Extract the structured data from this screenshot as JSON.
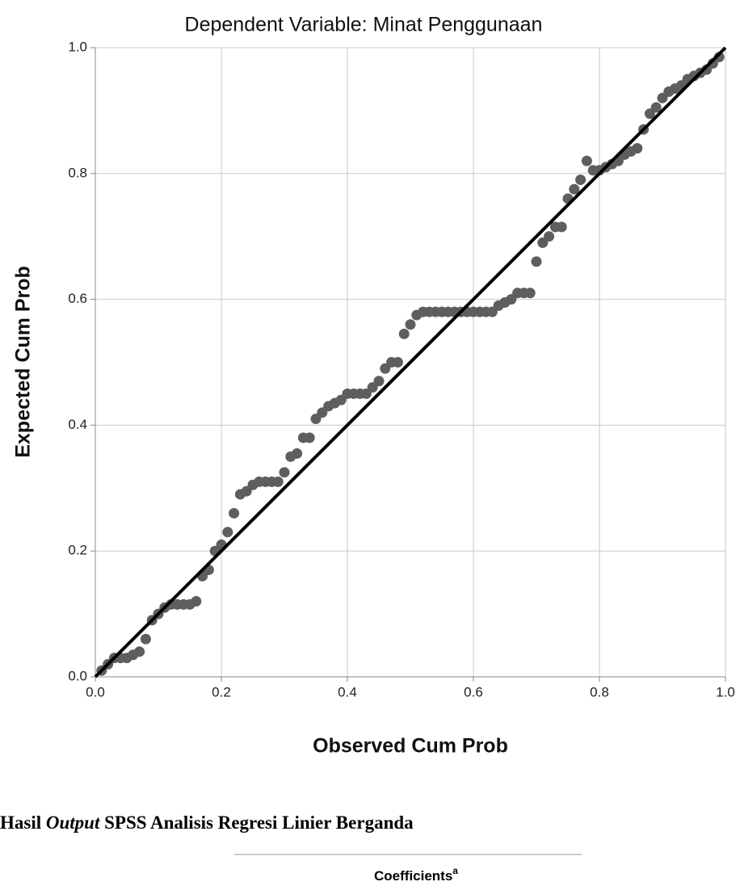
{
  "chart_data": {
    "type": "scatter",
    "title": "Dependent Variable: Minat Penggunaan",
    "x_label": "Observed Cum Prob",
    "y_label": "Expected Cum Prob",
    "x": [
      0.01,
      0.02,
      0.03,
      0.04,
      0.05,
      0.06,
      0.07,
      0.08,
      0.09,
      0.1,
      0.11,
      0.12,
      0.13,
      0.14,
      0.15,
      0.16,
      0.17,
      0.18,
      0.19,
      0.2,
      0.21,
      0.22,
      0.23,
      0.24,
      0.25,
      0.26,
      0.27,
      0.28,
      0.29,
      0.3,
      0.31,
      0.32,
      0.33,
      0.34,
      0.35,
      0.36,
      0.37,
      0.38,
      0.39,
      0.4,
      0.41,
      0.42,
      0.43,
      0.44,
      0.45,
      0.46,
      0.47,
      0.48,
      0.49,
      0.5,
      0.51,
      0.52,
      0.53,
      0.54,
      0.55,
      0.56,
      0.57,
      0.58,
      0.59,
      0.6,
      0.61,
      0.62,
      0.63,
      0.64,
      0.65,
      0.66,
      0.67,
      0.68,
      0.69,
      0.7,
      0.71,
      0.72,
      0.73,
      0.74,
      0.75,
      0.76,
      0.77,
      0.78,
      0.79,
      0.8,
      0.81,
      0.82,
      0.83,
      0.84,
      0.85,
      0.86,
      0.87,
      0.88,
      0.89,
      0.9,
      0.91,
      0.92,
      0.93,
      0.94,
      0.95,
      0.96,
      0.97,
      0.98,
      0.99
    ],
    "values": [
      0.01,
      0.02,
      0.03,
      0.03,
      0.03,
      0.035,
      0.04,
      0.06,
      0.09,
      0.1,
      0.11,
      0.115,
      0.115,
      0.115,
      0.115,
      0.12,
      0.16,
      0.17,
      0.2,
      0.21,
      0.23,
      0.26,
      0.29,
      0.295,
      0.305,
      0.31,
      0.31,
      0.31,
      0.31,
      0.325,
      0.35,
      0.355,
      0.38,
      0.38,
      0.41,
      0.42,
      0.43,
      0.435,
      0.44,
      0.45,
      0.45,
      0.45,
      0.45,
      0.46,
      0.47,
      0.49,
      0.5,
      0.5,
      0.545,
      0.56,
      0.575,
      0.58,
      0.58,
      0.58,
      0.58,
      0.58,
      0.58,
      0.58,
      0.58,
      0.58,
      0.58,
      0.58,
      0.58,
      0.59,
      0.595,
      0.6,
      0.61,
      0.61,
      0.61,
      0.66,
      0.69,
      0.7,
      0.715,
      0.715,
      0.76,
      0.775,
      0.79,
      0.82,
      0.805,
      0.805,
      0.81,
      0.815,
      0.82,
      0.83,
      0.835,
      0.84,
      0.87,
      0.895,
      0.905,
      0.92,
      0.93,
      0.935,
      0.94,
      0.95,
      0.955,
      0.96,
      0.965,
      0.975,
      0.985
    ],
    "color": "#5e5e5e",
    "reference_line_color": "#000000",
    "xlim": [
      0,
      1
    ],
    "ylim": [
      0,
      1
    ],
    "xticks": [
      {
        "value": 0,
        "label": "0.0"
      },
      0.2,
      0.4,
      0.6,
      0.8,
      {
        "value": 1,
        "label": "1.0"
      }
    ],
    "yticks": [
      {
        "value": 0,
        "label": "0.0"
      },
      0.2,
      0.4,
      0.6,
      0.8,
      {
        "value": 1,
        "label": "1.0"
      }
    ],
    "grid": true
  },
  "caption": {
    "parts": [
      "Hasil",
      "Output",
      "SPSS Analisis Regresi Linier Berganda"
    ]
  },
  "table": {
    "title": "Coefficients",
    "title_note": "a"
  }
}
